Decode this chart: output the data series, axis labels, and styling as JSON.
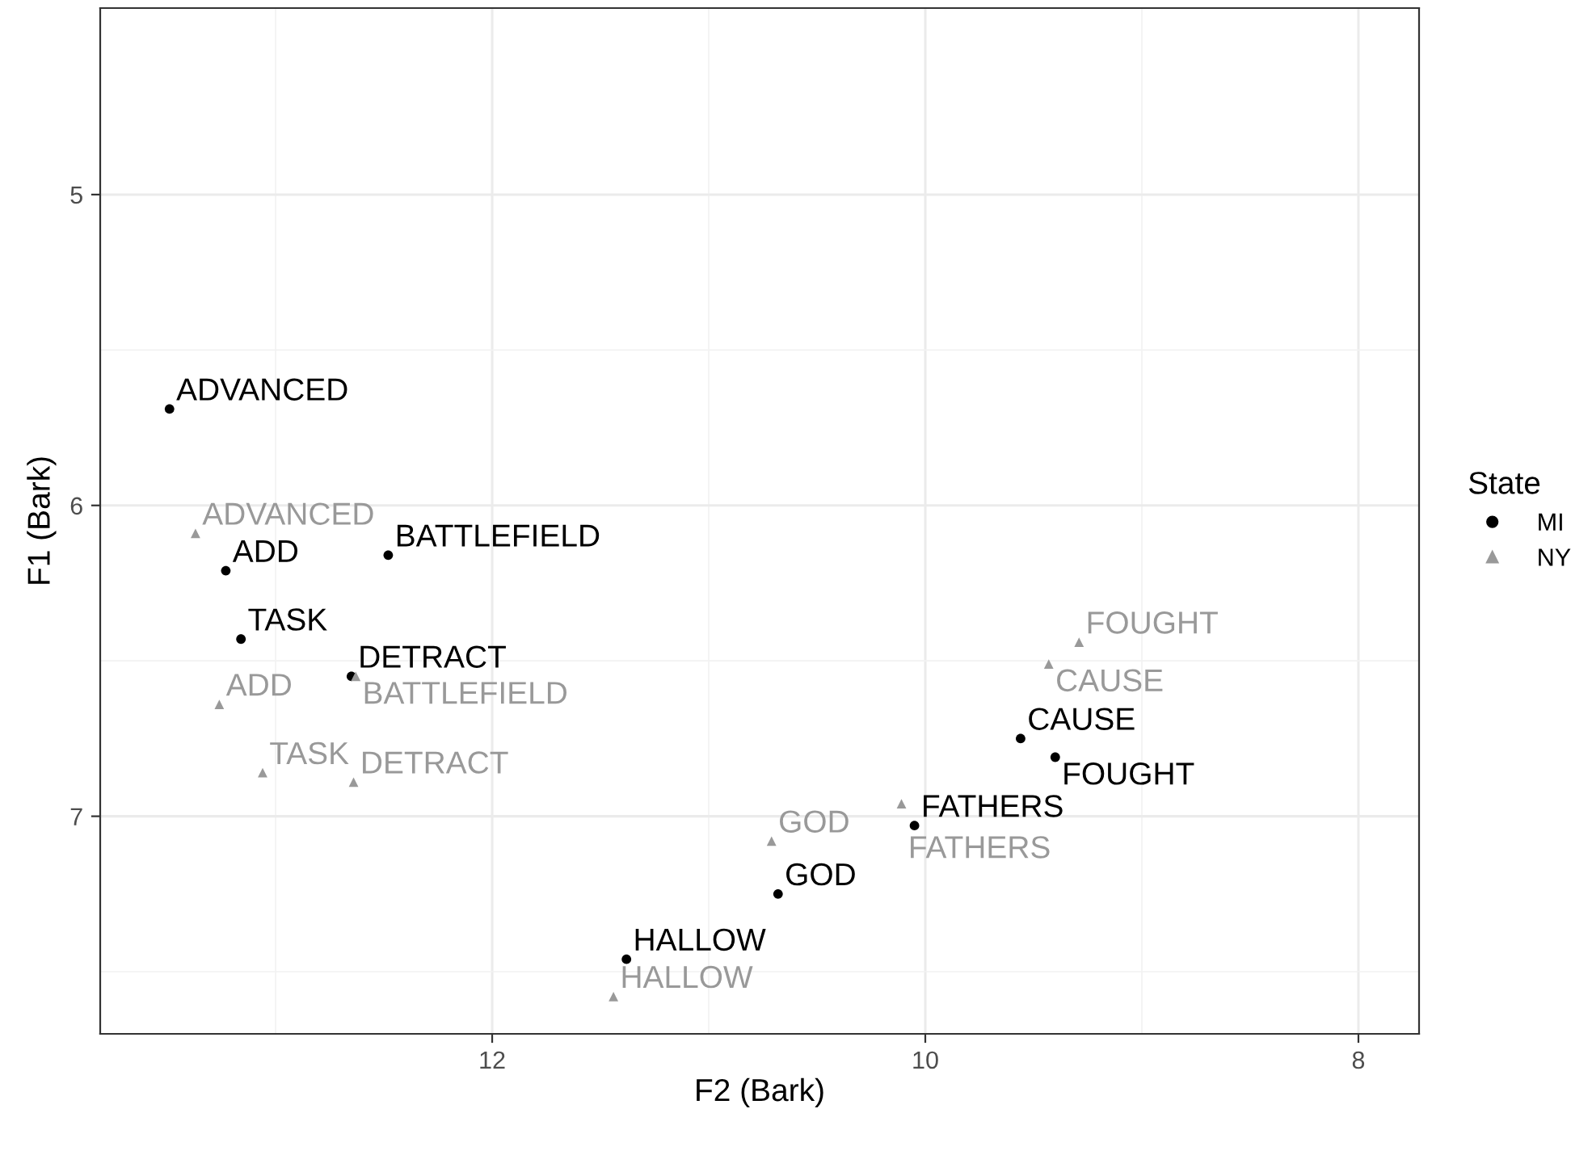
{
  "chart_data": {
    "type": "scatter",
    "xlabel": "F2 (Bark)",
    "ylabel": "F1 (Bark)",
    "legend_title": "State",
    "legend": "right",
    "grid": true,
    "xlim": [
      13.81,
      7.72
    ],
    "xticks": [
      12,
      10,
      8
    ],
    "ylim": [
      7.7,
      4.4
    ],
    "yticks": [
      5,
      6,
      7
    ],
    "series": [
      {
        "name": "MI",
        "color": "#000000",
        "marker": "circle",
        "x": [
          13.49,
          13.23,
          12.48,
          13.16,
          12.65,
          9.56,
          9.4,
          10.05,
          10.68,
          11.38
        ],
        "values": [
          5.69,
          6.21,
          6.16,
          6.43,
          6.55,
          6.75,
          6.81,
          7.03,
          7.25,
          7.46
        ]
      },
      {
        "name": "NY",
        "color": "#999999",
        "marker": "triangle",
        "x": [
          13.37,
          12.63,
          13.26,
          13.06,
          12.64,
          9.29,
          9.43,
          10.11,
          10.71,
          11.44
        ],
        "values": [
          6.09,
          6.55,
          6.64,
          6.86,
          6.89,
          6.44,
          6.51,
          6.96,
          7.08,
          7.58
        ]
      }
    ],
    "annotations": [
      {
        "text": "ADVANCED",
        "x": 13.49,
        "y": 5.69
      },
      {
        "text": "ADD",
        "x": 13.23,
        "y": 6.21
      },
      {
        "text": "BATTLEFIELD",
        "x": 12.48,
        "y": 6.16
      },
      {
        "text": "TASK",
        "x": 13.16,
        "y": 6.43
      },
      {
        "text": "DETRACT",
        "x": 12.65,
        "y": 6.55
      },
      {
        "text": "CAUSE",
        "x": 9.56,
        "y": 6.75
      },
      {
        "text": "FOUGHT",
        "x": 9.4,
        "y": 6.81
      },
      {
        "text": "FATHERS",
        "x": 10.05,
        "y": 7.03
      },
      {
        "text": "GOD",
        "x": 10.68,
        "y": 7.25
      },
      {
        "text": "HALLOW",
        "x": 11.38,
        "y": 7.46
      },
      {
        "text": "ADVANCED",
        "x": 13.37,
        "y": 6.09
      },
      {
        "text": "BATTLEFIELD",
        "x": 12.63,
        "y": 6.55
      },
      {
        "text": "ADD",
        "x": 13.26,
        "y": 6.64
      },
      {
        "text": "TASK",
        "x": 13.06,
        "y": 6.86
      },
      {
        "text": "DETRACT",
        "x": 12.64,
        "y": 6.89
      },
      {
        "text": "FOUGHT",
        "x": 9.29,
        "y": 6.44
      },
      {
        "text": "CAUSE",
        "x": 9.43,
        "y": 6.51
      },
      {
        "text": "FATHERS",
        "x": 10.11,
        "y": 6.96
      },
      {
        "text": "GOD",
        "x": 10.71,
        "y": 7.08
      },
      {
        "text": "HALLOW",
        "x": 11.44,
        "y": 7.58
      }
    ]
  }
}
